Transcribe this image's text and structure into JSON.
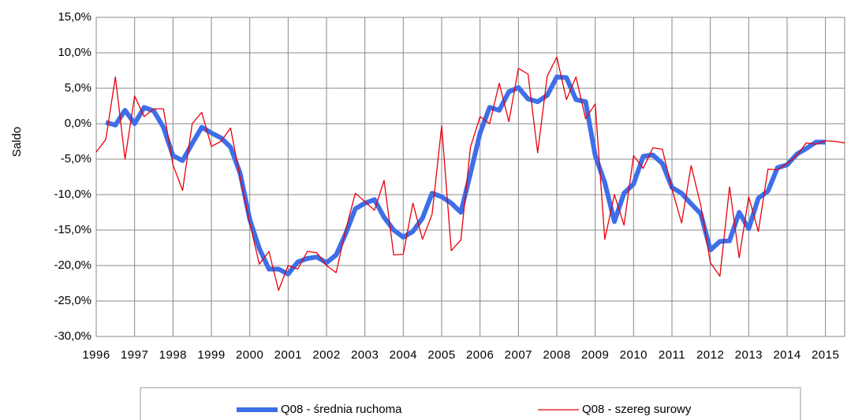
{
  "chart_data": {
    "type": "line",
    "ylabel": "Saldo",
    "xlim": [
      1996,
      2015.5
    ],
    "xticks": [
      1996,
      1997,
      1998,
      1999,
      2000,
      2001,
      2002,
      2003,
      2004,
      2005,
      2006,
      2007,
      2008,
      2009,
      2010,
      2011,
      2012,
      2013,
      2014,
      2015
    ],
    "ylim": [
      -30,
      15
    ],
    "yticks": [
      {
        "value": 15,
        "label": "15,0%"
      },
      {
        "value": 10,
        "label": "10,0%"
      },
      {
        "value": 5,
        "label": "5,0%"
      },
      {
        "value": 0,
        "label": "0,0%"
      },
      {
        "value": -5,
        "label": "-5,0%"
      },
      {
        "value": -10,
        "label": "-10,0%"
      },
      {
        "value": -15,
        "label": "-15,0%"
      },
      {
        "value": -20,
        "label": "-20,0%"
      },
      {
        "value": -25,
        "label": "-25,0%"
      },
      {
        "value": -30,
        "label": "-30,0%"
      }
    ],
    "grid": true,
    "legend": "bottom",
    "series": [
      {
        "name": "Q08 - średnia ruchoma",
        "color": "#3e6ee8",
        "width": 6,
        "x": [
          1996.25,
          1996.5,
          1996.75,
          1997,
          1997.25,
          1997.5,
          1997.75,
          1998,
          1998.25,
          1998.5,
          1998.75,
          1999,
          1999.25,
          1999.5,
          1999.75,
          2000,
          2000.25,
          2000.5,
          2000.75,
          2001,
          2001.25,
          2001.5,
          2001.75,
          2002,
          2002.25,
          2002.5,
          2002.75,
          2003,
          2003.25,
          2003.5,
          2003.75,
          2004,
          2004.25,
          2004.5,
          2004.75,
          2005,
          2005.25,
          2005.5,
          2005.75,
          2006,
          2006.25,
          2006.5,
          2006.75,
          2007,
          2007.25,
          2007.5,
          2007.75,
          2008,
          2008.25,
          2008.5,
          2008.75,
          2009,
          2009.25,
          2009.5,
          2009.75,
          2010,
          2010.25,
          2010.5,
          2010.75,
          2011,
          2011.25,
          2011.5,
          2011.75,
          2012,
          2012.25,
          2012.5,
          2012.75,
          2013,
          2013.25,
          2013.5,
          2013.75,
          2014,
          2014.25,
          2014.5,
          2014.75,
          2015
        ],
        "values": [
          0.2,
          -0.2,
          1.9,
          0.0,
          2.3,
          1.8,
          -0.5,
          -4.5,
          -5.2,
          -2.8,
          -0.5,
          -1.3,
          -2.0,
          -3.3,
          -7.0,
          -13.5,
          -17.6,
          -20.5,
          -20.5,
          -21.2,
          -19.5,
          -19.0,
          -18.8,
          -19.6,
          -18.5,
          -15.5,
          -12.0,
          -11.2,
          -10.7,
          -13.2,
          -15.0,
          -16.0,
          -15.2,
          -13.3,
          -9.8,
          -10.3,
          -11.2,
          -12.5,
          -7.0,
          -1.3,
          2.3,
          1.9,
          4.5,
          5.1,
          3.5,
          3.1,
          4.0,
          6.6,
          6.5,
          3.4,
          3.1,
          -4.5,
          -8.3,
          -13.8,
          -9.8,
          -8.5,
          -4.6,
          -4.4,
          -5.6,
          -9.0,
          -9.8,
          -11.3,
          -12.7,
          -17.8,
          -16.6,
          -16.5,
          -12.5,
          -14.8,
          -10.5,
          -9.5,
          -6.2,
          -5.8,
          -4.3,
          -3.5,
          -2.6,
          -2.6
        ]
      },
      {
        "name": "Q08 - szereg surowy",
        "color": "#e8000b",
        "width": 1.3,
        "x": [
          1996,
          1996.25,
          1996.5,
          1996.75,
          1997,
          1997.25,
          1997.5,
          1997.75,
          1998,
          1998.25,
          1998.5,
          1998.75,
          1999,
          1999.25,
          1999.5,
          1999.75,
          2000,
          2000.25,
          2000.5,
          2000.75,
          2001,
          2001.25,
          2001.5,
          2001.75,
          2002,
          2002.25,
          2002.5,
          2002.75,
          2003,
          2003.25,
          2003.5,
          2003.75,
          2004,
          2004.25,
          2004.5,
          2004.75,
          2005,
          2005.25,
          2005.5,
          2005.75,
          2006,
          2006.25,
          2006.5,
          2006.75,
          2007,
          2007.25,
          2007.5,
          2007.75,
          2008,
          2008.25,
          2008.5,
          2008.75,
          2009,
          2009.25,
          2009.5,
          2009.75,
          2010,
          2010.25,
          2010.5,
          2010.75,
          2011,
          2011.25,
          2011.5,
          2011.75,
          2012,
          2012.25,
          2012.5,
          2012.75,
          2013,
          2013.25,
          2013.5,
          2013.75,
          2014,
          2014.25,
          2014.5,
          2014.75,
          2015,
          2015.25,
          2015.5
        ],
        "values": [
          -4.0,
          -2.2,
          6.6,
          -5.0,
          3.9,
          1.0,
          2.1,
          2.1,
          -5.8,
          -9.4,
          0.0,
          1.6,
          -3.2,
          -2.5,
          -0.6,
          -7.6,
          -14.0,
          -19.8,
          -18.0,
          -23.5,
          -20.0,
          -20.5,
          -18.0,
          -18.2,
          -20.0,
          -21.0,
          -15.0,
          -9.8,
          -11.0,
          -12.2,
          -8.0,
          -18.5,
          -18.4,
          -11.2,
          -16.3,
          -12.8,
          -0.3,
          -17.9,
          -16.4,
          -3.3,
          1.0,
          0.0,
          5.7,
          0.3,
          7.8,
          7.0,
          -4.1,
          6.7,
          9.4,
          3.4,
          6.6,
          0.7,
          2.8,
          -16.3,
          -10.0,
          -14.3,
          -4.5,
          -6.3,
          -3.4,
          -3.6,
          -9.2,
          -14.0,
          -5.9,
          -11.5,
          -19.6,
          -21.5,
          -8.9,
          -18.9,
          -10.3,
          -15.2,
          -6.4,
          -6.5,
          -5.6,
          -4.5,
          -2.7,
          -2.9,
          -2.4,
          -2.5,
          -2.7
        ]
      }
    ]
  }
}
